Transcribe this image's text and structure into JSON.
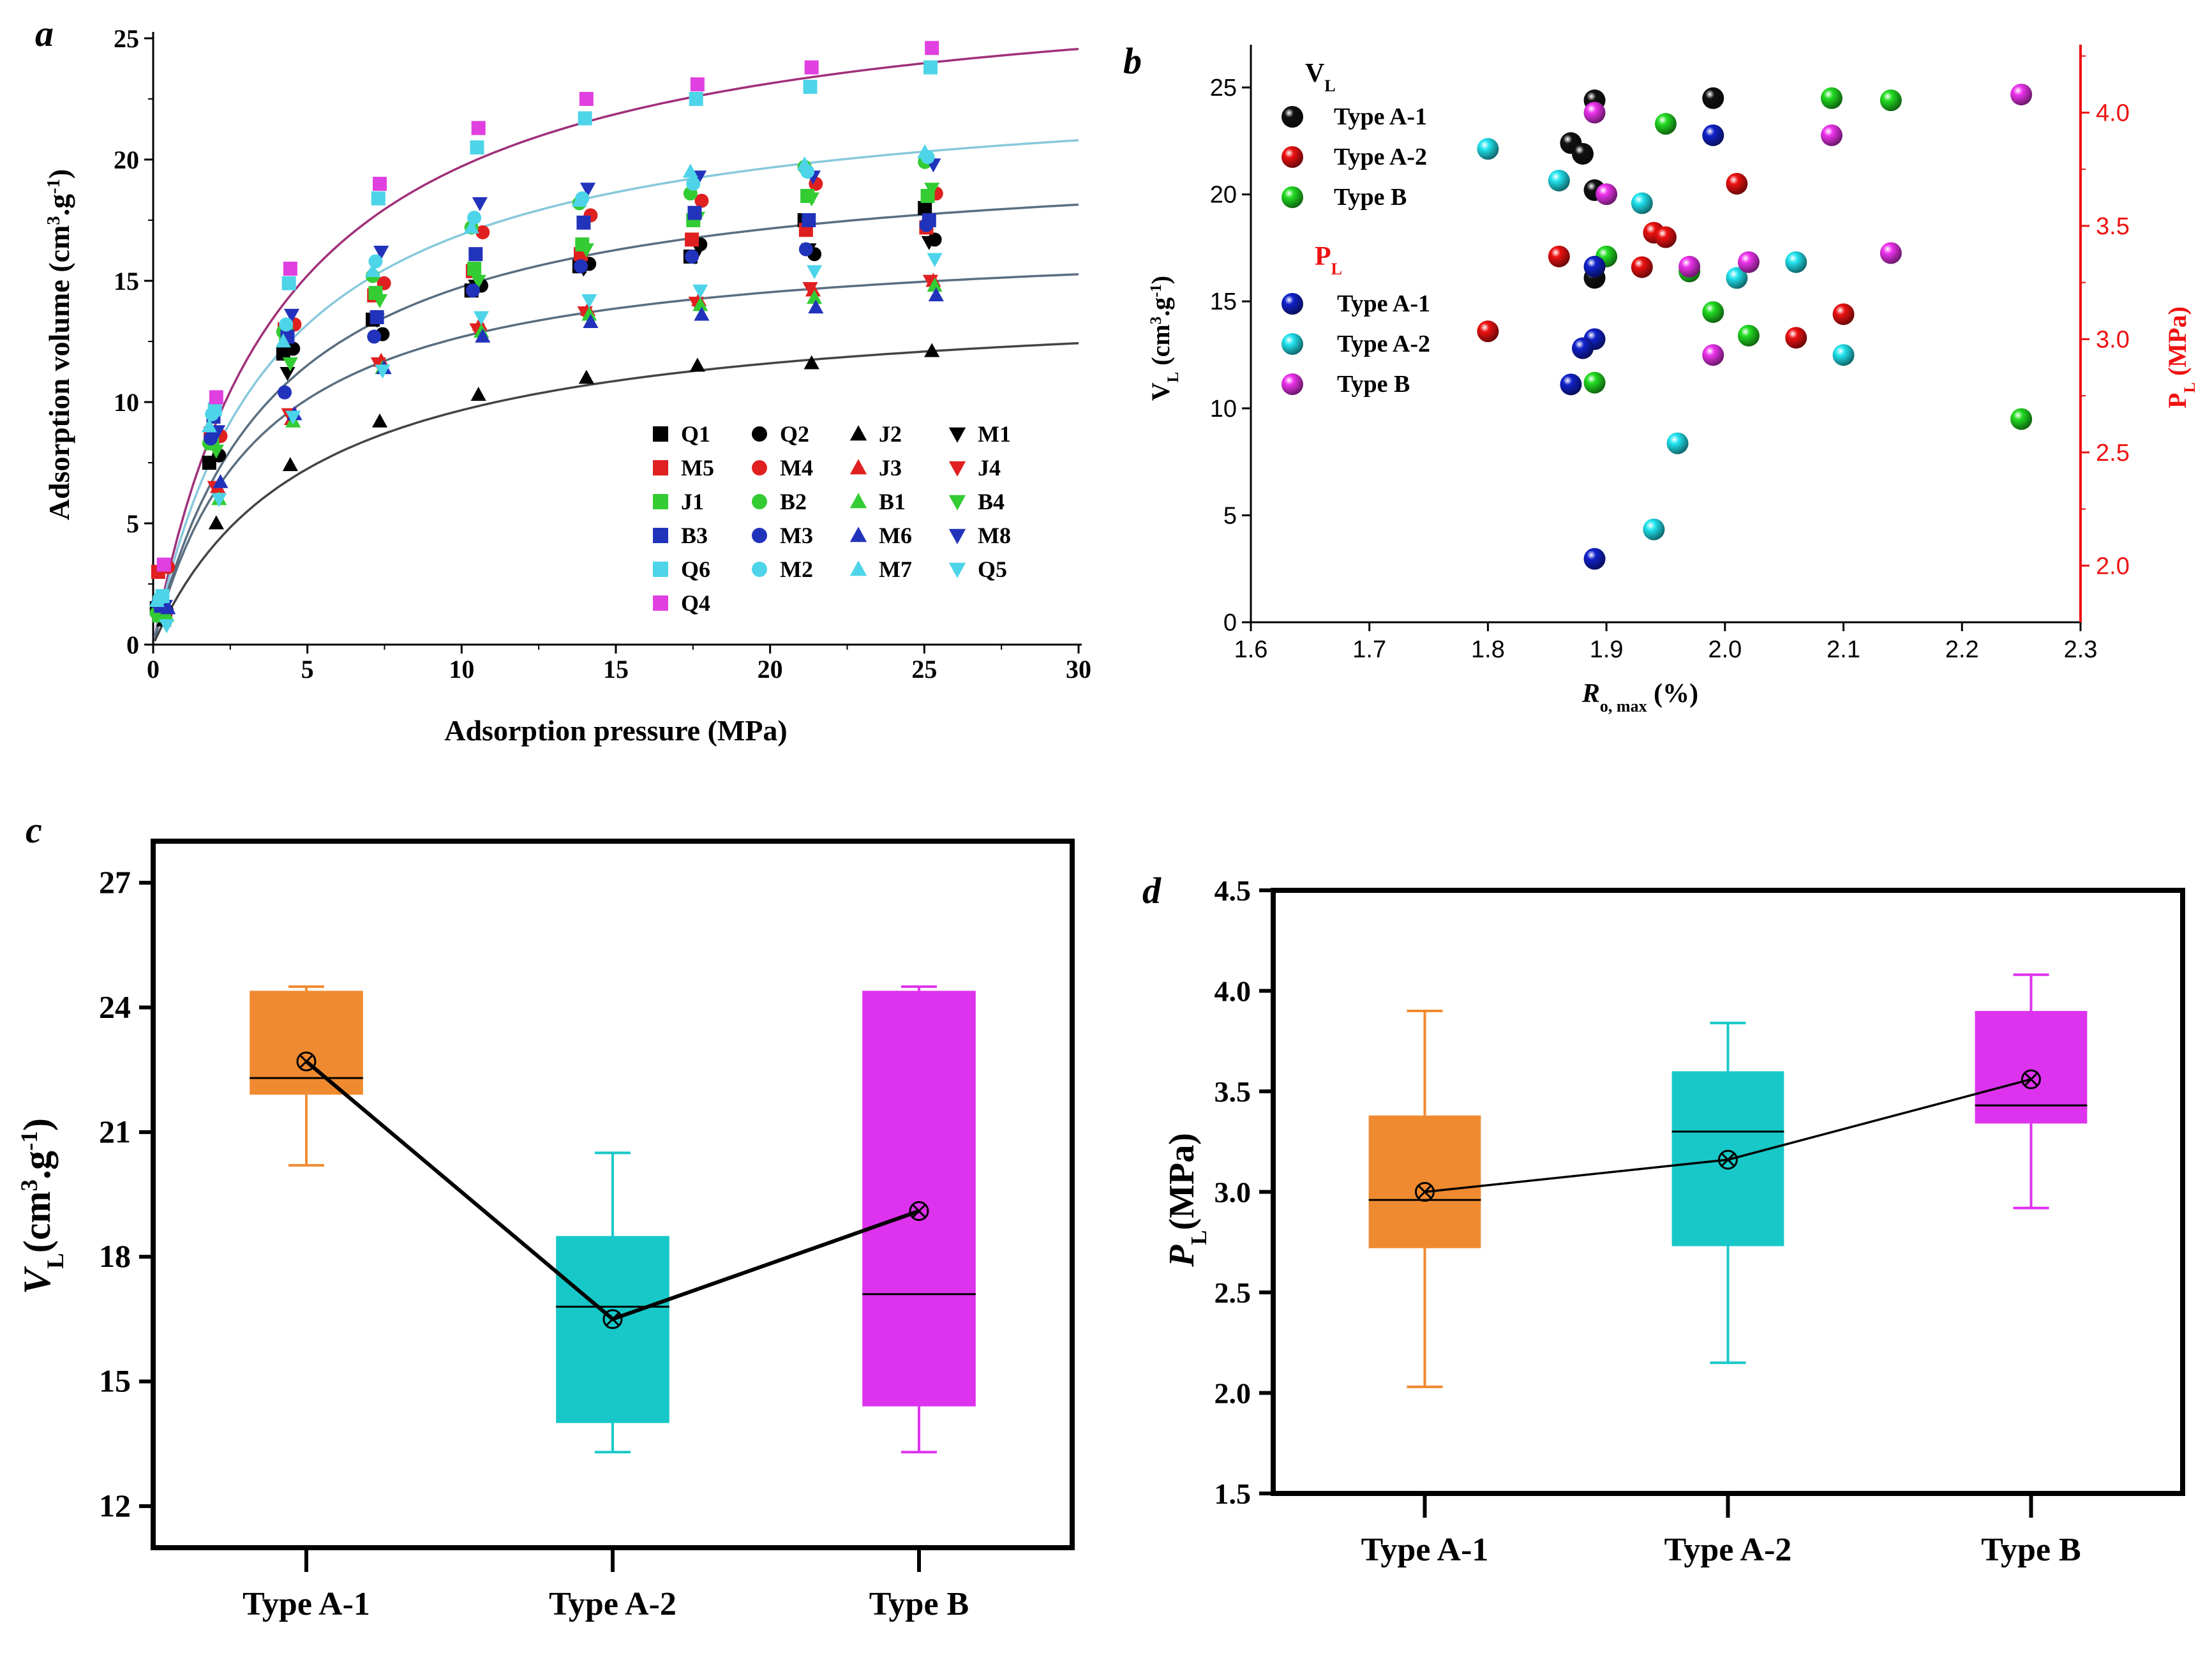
{
  "chart_data": [
    {
      "panel": "a",
      "type": "scatter",
      "xlabel": "Adsorption pressure (MPa)",
      "ylabel_main": "Adsorption volume (cm",
      "ylabel_sup1": "3",
      "ylabel_mid": ".g",
      "ylabel_sup2": "-1",
      "ylabel_end": ")",
      "xlim": [
        0,
        30
      ],
      "ylim": [
        0,
        25
      ],
      "xticks": [
        "0",
        "5",
        "10",
        "15",
        "20",
        "25",
        "30"
      ],
      "yticks": [
        "0",
        "5",
        "10",
        "15",
        "20",
        "25"
      ],
      "x": [
        0.3,
        2,
        4.4,
        7.3,
        10.5,
        14,
        17.6,
        21.3,
        25.2
      ],
      "series": [
        {
          "name": "Q1",
          "marker": "square",
          "color": "#000000",
          "values": [
            1.5,
            7.5,
            12.0,
            13.4,
            14.6,
            15.6,
            16.0,
            17.5,
            18.0
          ]
        },
        {
          "name": "Q2",
          "marker": "circle",
          "color": "#000000",
          "values": [
            1.4,
            7.8,
            12.2,
            12.8,
            14.8,
            15.7,
            16.5,
            16.1,
            16.7
          ]
        },
        {
          "name": "J2",
          "marker": "triangle-up",
          "color": "#000000",
          "values": [
            1.0,
            5.0,
            7.4,
            9.2,
            10.3,
            11.0,
            11.5,
            11.6,
            12.1
          ]
        },
        {
          "name": "M1",
          "marker": "triangle-down",
          "color": "#000000",
          "values": [
            1.3,
            8.5,
            11.2,
            13.4,
            14.8,
            15.5,
            16.0,
            16.3,
            16.6
          ]
        },
        {
          "name": "M5",
          "marker": "square",
          "color": "#e02020",
          "values": [
            3.0,
            8.7,
            13.0,
            14.4,
            15.4,
            16.1,
            16.7,
            17.1,
            17.2
          ]
        },
        {
          "name": "M4",
          "marker": "circle",
          "color": "#e02020",
          "values": [
            3.2,
            8.6,
            13.2,
            14.9,
            17.0,
            17.7,
            18.3,
            19.0,
            18.6
          ]
        },
        {
          "name": "J3",
          "marker": "triangle-up",
          "color": "#e02020",
          "values": [
            1.4,
            6.5,
            9.3,
            11.7,
            13.2,
            13.8,
            14.2,
            14.6,
            15.0
          ]
        },
        {
          "name": "J4",
          "marker": "triangle-down",
          "color": "#e02020",
          "values": [
            1.3,
            6.5,
            9.5,
            11.6,
            13.0,
            13.7,
            14.1,
            14.7,
            15.0
          ]
        },
        {
          "name": "J1",
          "marker": "square",
          "color": "#33cc33",
          "values": [
            1.2,
            8.3,
            12.8,
            14.5,
            15.5,
            16.5,
            17.5,
            18.5,
            18.5
          ]
        },
        {
          "name": "B2",
          "marker": "circle",
          "color": "#33cc33",
          "values": [
            1.3,
            8.3,
            12.9,
            15.2,
            17.2,
            18.2,
            18.6,
            19.7,
            19.9
          ]
        },
        {
          "name": "B1",
          "marker": "triangle-up",
          "color": "#33cc33",
          "values": [
            1.2,
            6.0,
            9.2,
            11.4,
            12.9,
            13.6,
            14.0,
            14.3,
            14.8
          ]
        },
        {
          "name": "B4",
          "marker": "triangle-down",
          "color": "#33cc33",
          "values": [
            1.2,
            8.0,
            11.6,
            14.2,
            15.0,
            16.3,
            17.6,
            18.4,
            18.8
          ]
        },
        {
          "name": "B3",
          "marker": "square",
          "color": "#2233bb",
          "values": [
            1.6,
            9.4,
            12.7,
            13.5,
            16.1,
            17.4,
            17.8,
            17.5,
            17.5
          ]
        },
        {
          "name": "M3",
          "marker": "circle",
          "color": "#2233bb",
          "values": [
            1.7,
            8.5,
            10.4,
            12.7,
            14.6,
            15.6,
            16.0,
            16.3,
            17.3
          ]
        },
        {
          "name": "M6",
          "marker": "triangle-up",
          "color": "#2233bb",
          "values": [
            1.5,
            6.7,
            9.5,
            11.4,
            12.7,
            13.3,
            13.6,
            13.9,
            14.4
          ]
        },
        {
          "name": "M8",
          "marker": "triangle-down",
          "color": "#2233bb",
          "values": [
            1.6,
            8.8,
            13.6,
            16.2,
            18.2,
            18.8,
            19.3,
            19.3,
            19.8
          ]
        },
        {
          "name": "Q6",
          "marker": "square",
          "color": "#4dd4e8",
          "values": [
            2.0,
            9.7,
            14.9,
            18.4,
            20.5,
            21.7,
            22.5,
            23.0,
            23.8
          ]
        },
        {
          "name": "M2",
          "marker": "circle",
          "color": "#4dd4e8",
          "values": [
            1.9,
            9.5,
            13.2,
            15.8,
            17.6,
            18.4,
            19.0,
            19.5,
            20.1
          ]
        },
        {
          "name": "M7",
          "marker": "triangle-up",
          "color": "#4dd4e8",
          "values": [
            1.8,
            9.0,
            12.5,
            15.4,
            17.2,
            18.3,
            19.5,
            19.8,
            20.3
          ]
        },
        {
          "name": "Q5",
          "marker": "triangle-down",
          "color": "#4dd4e8",
          "values": [
            0.8,
            6.0,
            9.4,
            11.3,
            13.5,
            14.2,
            14.6,
            15.4,
            15.9
          ]
        },
        {
          "name": "Q4",
          "marker": "square",
          "color": "#e040e0",
          "values": [
            3.3,
            10.2,
            15.5,
            19.0,
            21.3,
            22.5,
            23.1,
            23.8,
            24.6
          ]
        }
      ],
      "fit_curves": [
        {
          "vl": 28.0,
          "pl": 4.2,
          "color": "#a0307a"
        },
        {
          "vl": 23.5,
          "pl": 3.9,
          "color": "#88c8dc"
        },
        {
          "vl": 20.5,
          "pl": 3.9,
          "color": "#5a6e80"
        },
        {
          "vl": 17.0,
          "pl": 3.4,
          "color": "#5a6e80"
        },
        {
          "vl": 14.5,
          "pl": 5.0,
          "color": "#444444"
        }
      ]
    },
    {
      "panel": "b",
      "type": "scatter",
      "xlabel_main": "R",
      "xlabel_sub": "o, max",
      "xlabel_end": "(%)",
      "ylabel_left_main": "V",
      "ylabel_left_sub": "L",
      "ylabel_left_end": "(cm",
      "ylabel_left_sup1": "3",
      "ylabel_left_mid": ".g",
      "ylabel_left_sup2": "-1",
      "ylabel_left_close": ")",
      "ylabel_right_main": "P",
      "ylabel_right_sub": "L",
      "ylabel_right_end": "(MPa)",
      "xlim": [
        1.6,
        2.3
      ],
      "ylim_left": [
        0,
        27
      ],
      "ylim_right": [
        1.75,
        4.3
      ],
      "xticks": [
        "1.6",
        "1.7",
        "1.8",
        "1.9",
        "2.0",
        "2.1",
        "2.2",
        "2.3"
      ],
      "yticks_left": [
        "0",
        "5",
        "10",
        "15",
        "20",
        "25"
      ],
      "yticks_right": [
        "2.0",
        "2.5",
        "3.0",
        "3.5",
        "4.0"
      ],
      "legend_vl_title_main": "V",
      "legend_vl_title_sub": "L",
      "legend_pl_title_main": "P",
      "legend_pl_title_sub": "L",
      "legend_vl": [
        "Type A-1",
        "Type A-2",
        "Type B"
      ],
      "legend_pl": [
        "Type A-1",
        "Type A-2",
        "Type B"
      ],
      "vl_series": [
        {
          "name": "Type A-1",
          "color": "#111111",
          "points": [
            [
              1.89,
              24.4
            ],
            [
              1.99,
              24.5
            ],
            [
              1.87,
              22.4
            ],
            [
              1.88,
              21.9
            ],
            [
              1.89,
              20.2
            ],
            [
              1.89,
              16.1
            ]
          ]
        },
        {
          "name": "Type A-2",
          "color": "#ee1111",
          "points": [
            [
              2.01,
              20.5
            ],
            [
              1.86,
              17.1
            ],
            [
              1.93,
              16.6
            ],
            [
              2.06,
              13.3
            ],
            [
              2.1,
              14.4
            ],
            [
              1.8,
              13.6
            ]
          ]
        },
        {
          "name": "Type B",
          "color": "#22dd22",
          "points": [
            [
              2.09,
              24.5
            ],
            [
              2.14,
              24.4
            ],
            [
              1.95,
              23.3
            ],
            [
              1.9,
              17.1
            ],
            [
              1.97,
              16.4
            ],
            [
              1.99,
              14.5
            ],
            [
              2.02,
              13.4
            ],
            [
              1.89,
              11.2
            ],
            [
              2.25,
              9.5
            ]
          ]
        }
      ],
      "pl_series": [
        {
          "name": "Type A-1",
          "color": "#1122cc",
          "points": [
            [
              1.99,
              3.9
            ],
            [
              1.89,
              3.32
            ],
            [
              1.89,
              3.0
            ],
            [
              1.88,
              2.96
            ],
            [
              1.87,
              2.8
            ],
            [
              1.89,
              2.03
            ]
          ]
        },
        {
          "name": "Type A-2",
          "color": "#22e5f0",
          "points": [
            [
              1.8,
              3.84
            ],
            [
              1.86,
              3.7
            ],
            [
              1.93,
              3.6
            ],
            [
              2.06,
              3.34
            ],
            [
              2.01,
              3.27
            ],
            [
              2.1,
              2.93
            ],
            [
              1.96,
              2.54
            ],
            [
              1.94,
              2.16
            ]
          ]
        },
        {
          "name": "Type B",
          "color": "#ee33ee",
          "points": [
            [
              1.89,
              4.0
            ],
            [
              2.25,
              4.08
            ],
            [
              2.09,
              3.9
            ],
            [
              1.9,
              3.64
            ],
            [
              2.14,
              3.38
            ],
            [
              2.02,
              3.34
            ],
            [
              1.97,
              3.32
            ],
            [
              1.99,
              2.93
            ]
          ]
        }
      ],
      "pl_series_red": [
        {
          "name": "Type A-2",
          "color": "#ee1111",
          "points": [
            [
              1.94,
              3.47
            ],
            [
              1.95,
              3.45
            ]
          ]
        }
      ]
    },
    {
      "panel": "c",
      "type": "box",
      "ylabel_main": "V",
      "ylabel_sub": "L",
      "ylabel_end": "(cm",
      "ylabel_sup1": "3",
      "ylabel_mid": ".g",
      "ylabel_sup2": "-1",
      "ylabel_close": ")",
      "ylim": [
        11,
        28
      ],
      "yticks": [
        "12",
        "15",
        "18",
        "21",
        "24",
        "27"
      ],
      "categories": [
        "Type A-1",
        "Type A-2",
        "Type B"
      ],
      "colors": [
        "#f08a30",
        "#18c8c8",
        "#dd33ee"
      ],
      "whisker_low": [
        20.2,
        13.3,
        13.3
      ],
      "q1": [
        21.9,
        14.0,
        14.4
      ],
      "median": [
        22.3,
        16.8,
        17.1
      ],
      "q3": [
        24.4,
        18.5,
        24.4
      ],
      "whisker_high": [
        24.5,
        20.5,
        24.5
      ],
      "mean": [
        22.7,
        16.5,
        19.1
      ]
    },
    {
      "panel": "d",
      "type": "box",
      "ylabel_main": "P",
      "ylabel_sub": "L",
      "ylabel_end": "(MPa)",
      "ylim": [
        1.5,
        4.5
      ],
      "yticks": [
        "1.5",
        "2.0",
        "2.5",
        "3.0",
        "3.5",
        "4.0",
        "4.5"
      ],
      "categories": [
        "Type A-1",
        "Type A-2",
        "Type B"
      ],
      "colors": [
        "#f08a30",
        "#18c8c8",
        "#dd33ee"
      ],
      "whisker_low": [
        2.03,
        2.15,
        2.92
      ],
      "q1": [
        2.72,
        2.73,
        3.34
      ],
      "median": [
        2.96,
        3.3,
        3.43
      ],
      "q3": [
        3.38,
        3.6,
        3.9
      ],
      "whisker_high": [
        3.9,
        3.84,
        4.08
      ],
      "mean": [
        3.0,
        3.16,
        3.56
      ]
    }
  ],
  "panel_labels": [
    "a",
    "b",
    "c",
    "d"
  ]
}
